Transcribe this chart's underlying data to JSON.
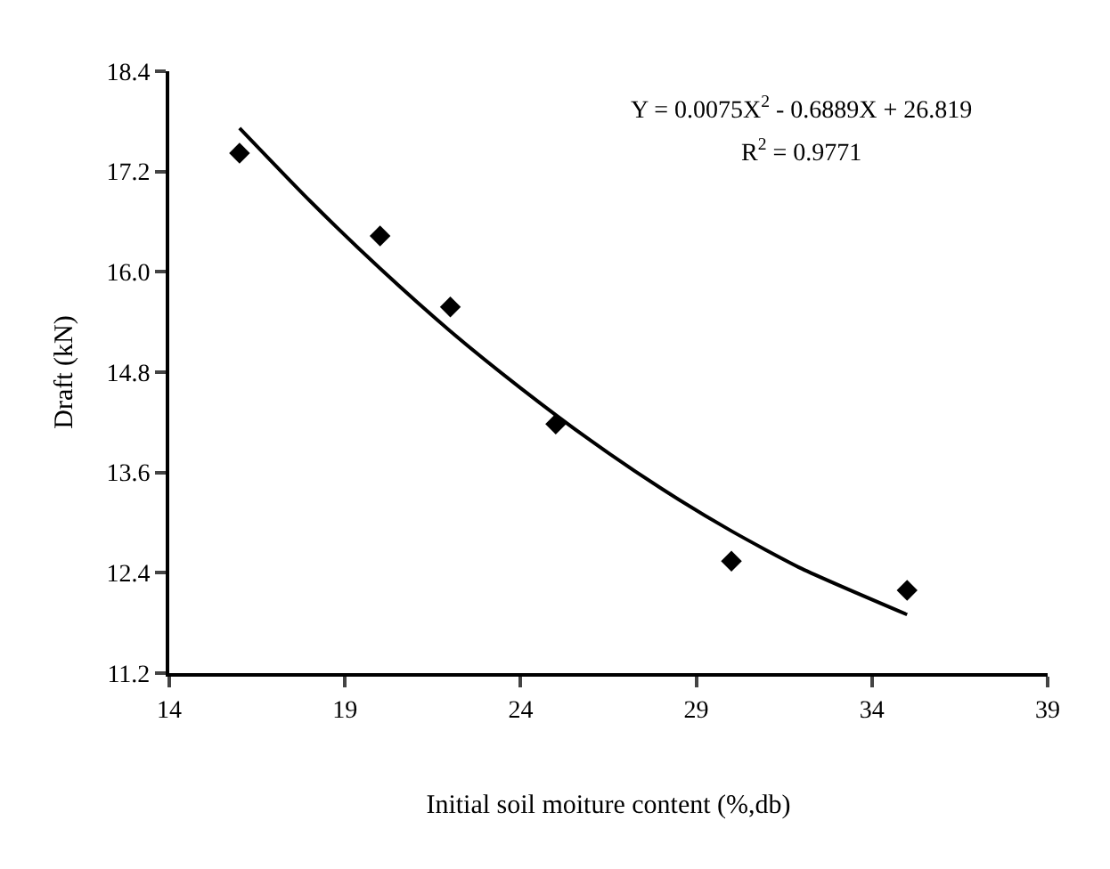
{
  "chart_data": {
    "type": "scatter",
    "xlabel": "Initial soil moiture content (%,db)",
    "ylabel": "Draft (kN)",
    "xlim": [
      14,
      39
    ],
    "xticks": [
      14,
      19,
      24,
      29,
      34,
      39
    ],
    "ylim": [
      11.2,
      18.4
    ],
    "yticks": [
      {
        "value": 11.2,
        "label": "11.2"
      },
      {
        "value": 12.4,
        "label": "12.4"
      },
      {
        "value": 13.6,
        "label": "13.6"
      },
      {
        "value": 14.8,
        "label": "14.8"
      },
      {
        "value": 16,
        "label": "16.0"
      },
      {
        "value": 17.2,
        "label": "17.2"
      },
      {
        "value": 18.4,
        "label": "18.4"
      }
    ],
    "grid": false,
    "marker": "diamond",
    "series": [
      {
        "type": "scatter",
        "color": "#000000",
        "x": [
          16,
          20,
          22,
          25,
          30,
          35
        ],
        "values": [
          17.42,
          16.43,
          15.58,
          14.18,
          12.54,
          12.19
        ]
      },
      {
        "type": "line",
        "color": "#000000",
        "marker": "none",
        "line_style": "solid",
        "x": [
          16,
          18,
          20,
          22,
          24,
          26,
          28,
          30,
          32,
          35
        ],
        "values": [
          17.72,
          16.85,
          16.04,
          15.29,
          14.61,
          13.98,
          13.41,
          12.9,
          12.45,
          11.9
        ]
      }
    ],
    "annotations": [
      "Y = 0.0075X$^{2}$ - 0.6889X + 26.819",
      "R$^{2}$ = 0.9771"
    ]
  }
}
